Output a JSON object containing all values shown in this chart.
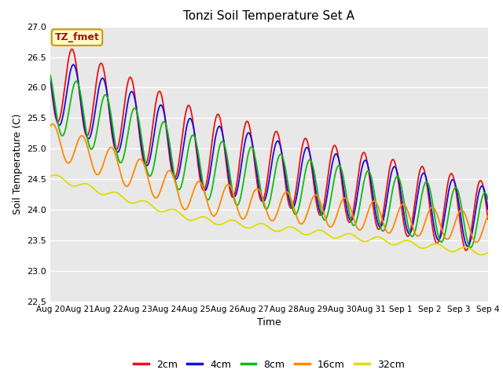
{
  "title": "Tonzi Soil Temperature Set A",
  "xlabel": "Time",
  "ylabel": "Soil Temperature (C)",
  "ylim": [
    22.5,
    27.0
  ],
  "annotation": "TZ_fmet",
  "annotation_color": "#aa1100",
  "annotation_bg": "#ffffcc",
  "annotation_border": "#cc9900",
  "bg_color": "#e8e8e8",
  "plot_bg": "#e8e8e8",
  "grid_color": "#ffffff",
  "line_colors": {
    "2cm": "#ee1111",
    "4cm": "#1111dd",
    "8cm": "#11bb11",
    "16cm": "#ff8800",
    "32cm": "#dddd00"
  },
  "legend_labels": [
    "2cm",
    "4cm",
    "8cm",
    "16cm",
    "32cm"
  ],
  "xtick_labels": [
    "Aug 20",
    "Aug 21",
    "Aug 22",
    "Aug 23",
    "Aug 24",
    "Aug 25",
    "Aug 26",
    "Aug 27",
    "Aug 28",
    "Aug 29",
    "Aug 30",
    "Aug 31",
    "Sep 1",
    "Sep 2",
    "Sep 3",
    "Sep 4"
  ],
  "n_days": 15,
  "samples_per_day": 144
}
